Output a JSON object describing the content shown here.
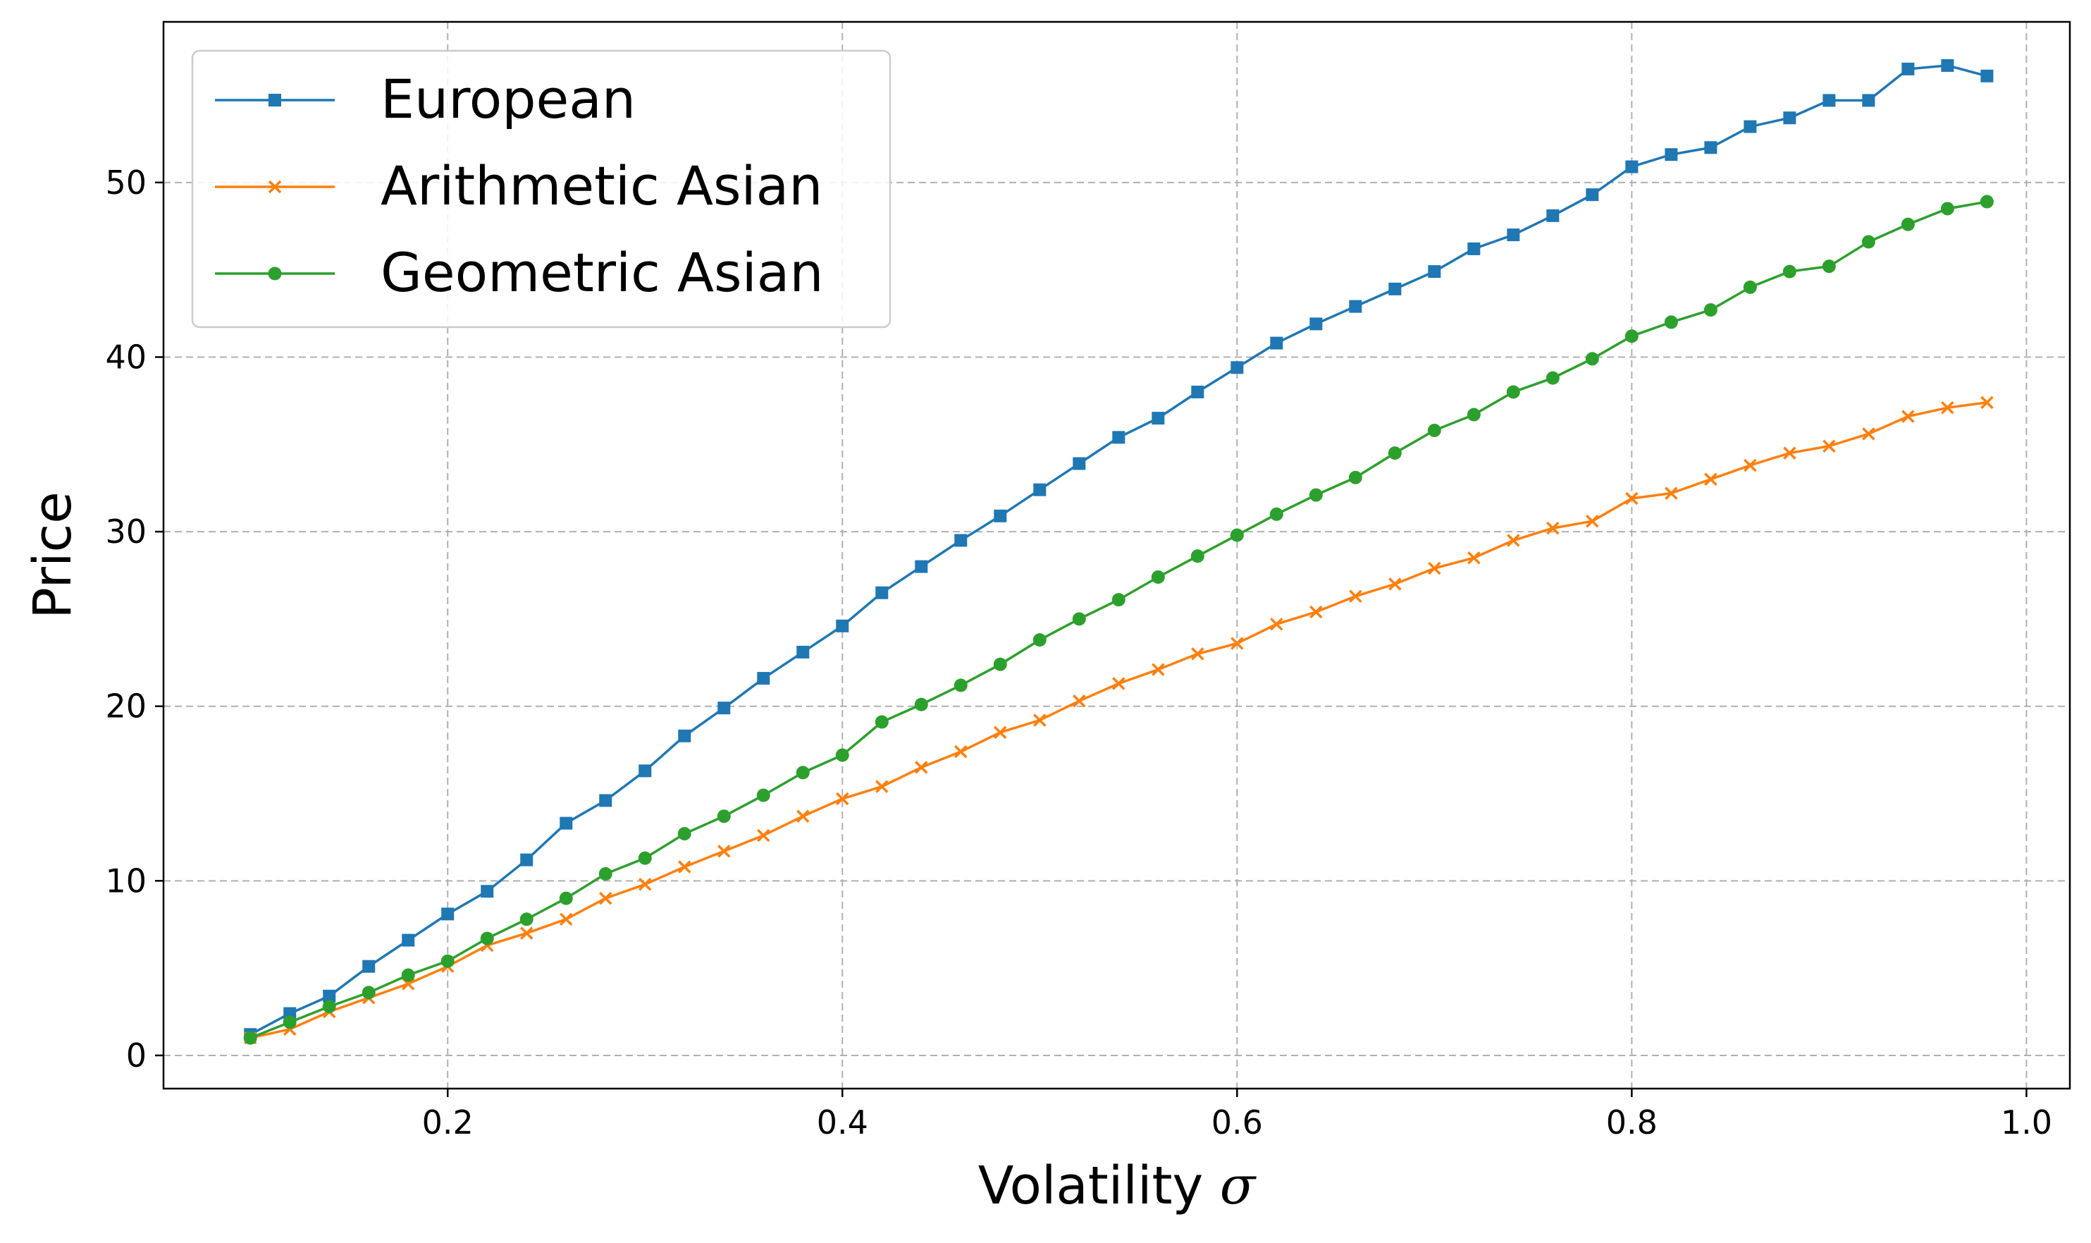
{
  "chart_data": {
    "type": "line",
    "title": "",
    "xlabel": "Volatility",
    "xlabel_symbol": "σ",
    "ylabel": "Price",
    "xlim": [
      0.056,
      1.022
    ],
    "ylim": [
      -1.9,
      59.2
    ],
    "xticks": [
      0.2,
      0.4,
      0.6,
      0.8,
      1.0
    ],
    "xtick_labels": [
      "0.2",
      "0.4",
      "0.6",
      "0.8",
      "1.0"
    ],
    "yticks": [
      0,
      10,
      20,
      30,
      40,
      50
    ],
    "ytick_labels": [
      "0",
      "10",
      "20",
      "30",
      "40",
      "50"
    ],
    "grid": true,
    "legend_position": "top-left",
    "x": [
      0.1,
      0.12,
      0.14,
      0.16,
      0.18,
      0.2,
      0.22,
      0.24,
      0.26,
      0.28,
      0.3,
      0.32,
      0.34,
      0.36,
      0.38,
      0.4,
      0.42,
      0.44,
      0.46,
      0.48,
      0.5,
      0.52,
      0.54,
      0.56,
      0.58,
      0.6,
      0.62,
      0.64,
      0.66,
      0.68,
      0.7,
      0.72,
      0.74,
      0.76,
      0.78,
      0.8,
      0.82,
      0.84,
      0.86,
      0.88,
      0.9,
      0.92,
      0.94,
      0.96,
      0.98
    ],
    "series": [
      {
        "name": "European",
        "color": "#1f77b4",
        "marker": "square",
        "values": [
          1.2,
          2.4,
          3.4,
          5.1,
          6.6,
          8.1,
          9.4,
          11.2,
          13.3,
          14.6,
          16.3,
          18.3,
          19.9,
          21.6,
          23.1,
          24.6,
          26.5,
          28.0,
          29.5,
          30.9,
          32.4,
          33.9,
          35.4,
          36.5,
          38.0,
          39.4,
          40.8,
          41.9,
          42.9,
          43.9,
          44.9,
          46.2,
          47.0,
          48.1,
          49.3,
          50.9,
          51.6,
          52.0,
          53.2,
          53.7,
          54.7,
          54.7,
          56.5,
          56.7,
          56.1
        ]
      },
      {
        "name": "Arithmetic Asian",
        "color": "#ff7f0e",
        "marker": "x",
        "values": [
          1.0,
          1.5,
          2.5,
          3.3,
          4.1,
          5.1,
          6.3,
          7.0,
          7.8,
          9.0,
          9.8,
          10.8,
          11.7,
          12.6,
          13.7,
          14.7,
          15.4,
          16.5,
          17.4,
          18.5,
          19.2,
          20.3,
          21.3,
          22.1,
          23.0,
          23.6,
          24.7,
          25.4,
          26.3,
          27.0,
          27.9,
          28.5,
          29.5,
          30.2,
          30.6,
          31.9,
          32.2,
          33.0,
          33.8,
          34.5,
          34.9,
          35.6,
          36.6,
          37.1,
          37.4
        ]
      },
      {
        "name": "Geometric Asian",
        "color": "#2ca02c",
        "marker": "circle",
        "values": [
          1.0,
          1.9,
          2.8,
          3.6,
          4.6,
          5.4,
          6.7,
          7.8,
          9.0,
          10.4,
          11.3,
          12.7,
          13.7,
          14.9,
          16.2,
          17.2,
          19.1,
          20.1,
          21.2,
          22.4,
          23.8,
          25.0,
          26.1,
          27.4,
          28.6,
          29.8,
          31.0,
          32.1,
          33.1,
          34.5,
          35.8,
          36.7,
          38.0,
          38.8,
          39.9,
          41.2,
          42.0,
          42.7,
          44.0,
          44.9,
          45.2,
          46.6,
          47.6,
          48.5,
          48.9
        ]
      }
    ]
  }
}
